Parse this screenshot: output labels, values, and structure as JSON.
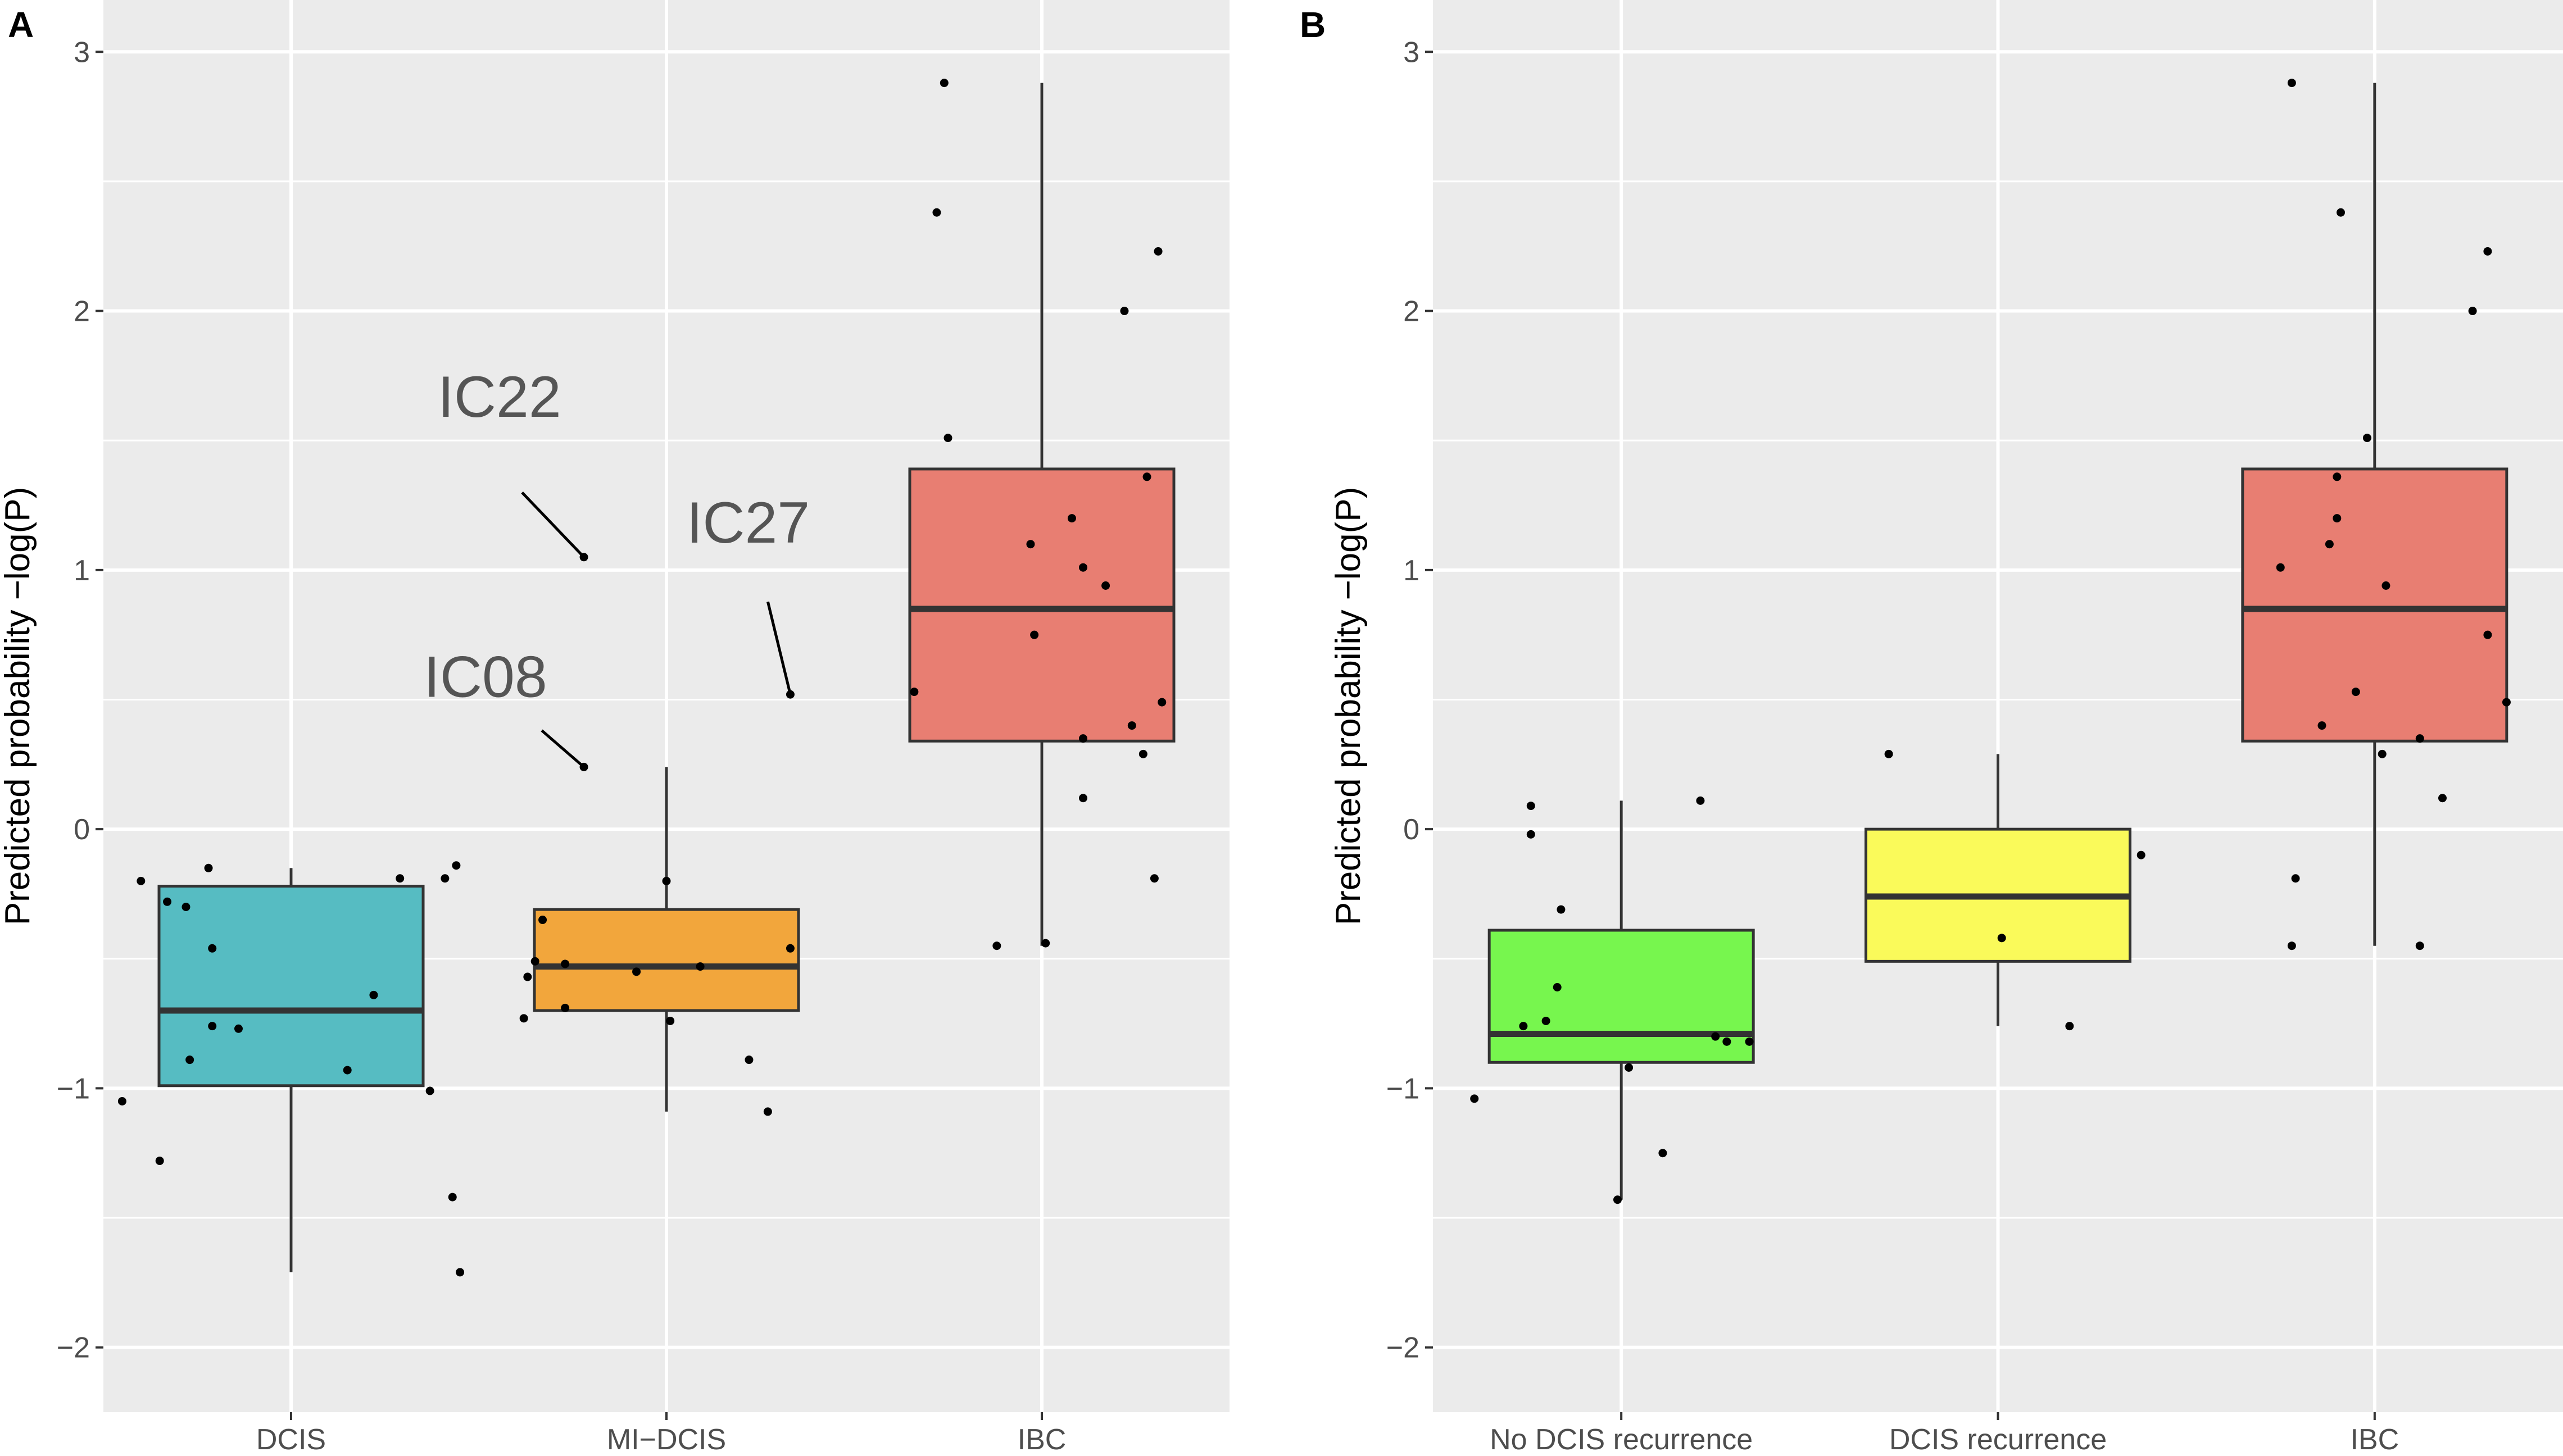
{
  "chart_data": [
    {
      "panel": "A",
      "type": "box",
      "ylabel": "Predicted probability −log(P)",
      "xlabel": "",
      "ylim": [
        -2.25,
        3.2
      ],
      "yticks": [
        {
          "value": -2,
          "label": "−2"
        },
        {
          "value": -1,
          "label": "−1"
        },
        {
          "value": 0,
          "label": "0"
        },
        {
          "value": 1,
          "label": "1"
        },
        {
          "value": 2,
          "label": "2"
        },
        {
          "value": 3,
          "label": "3"
        }
      ],
      "grid": true,
      "categories": [
        "DCIS",
        "MI−DCIS",
        "IBC"
      ],
      "boxes": [
        {
          "category": "DCIS",
          "color": "#56bcc2",
          "whisker_low": -1.71,
          "q1": -0.99,
          "median": -0.7,
          "q3": -0.22,
          "whisker_high": -0.15,
          "points": [
            [
              -0.45,
              -1.05
            ],
            [
              -0.4,
              -0.2
            ],
            [
              -0.35,
              -1.28
            ],
            [
              -0.33,
              -0.28
            ],
            [
              -0.28,
              -0.3
            ],
            [
              -0.27,
              -0.89
            ],
            [
              -0.22,
              -0.15
            ],
            [
              -0.21,
              -0.46
            ],
            [
              -0.21,
              -0.76
            ],
            [
              -0.14,
              -0.77
            ],
            [
              0.15,
              -0.93
            ],
            [
              0.22,
              -0.64
            ],
            [
              0.29,
              -0.19
            ],
            [
              0.37,
              -1.01
            ],
            [
              0.41,
              -0.19
            ],
            [
              0.43,
              -1.42
            ],
            [
              0.44,
              -0.14
            ],
            [
              0.45,
              -1.71
            ]
          ]
        },
        {
          "category": "MI−DCIS",
          "color": "#f2a63c",
          "whisker_low": -1.09,
          "q1": -0.7,
          "median": -0.53,
          "q3": -0.31,
          "whisker_high": 0.24,
          "points": [
            [
              -0.38,
              -0.73
            ],
            [
              -0.37,
              -0.57
            ],
            [
              -0.35,
              -0.51
            ],
            [
              -0.33,
              -0.35
            ],
            [
              -0.27,
              -0.52
            ],
            [
              -0.27,
              -0.69
            ],
            [
              -0.22,
              1.05
            ],
            [
              -0.22,
              0.24
            ],
            [
              -0.08,
              -0.55
            ],
            [
              0.0,
              -0.2
            ],
            [
              0.01,
              -0.74
            ],
            [
              0.09,
              -0.53
            ],
            [
              0.22,
              -0.89
            ],
            [
              0.27,
              -1.09
            ],
            [
              0.33,
              0.52
            ],
            [
              0.33,
              -0.46
            ]
          ]
        },
        {
          "category": "IBC",
          "color": "#e87e72",
          "whisker_low": -0.45,
          "q1": 0.34,
          "median": 0.85,
          "q3": 1.39,
          "whisker_high": 2.88,
          "points": [
            [
              -0.34,
              0.53
            ],
            [
              -0.26,
              2.88
            ],
            [
              -0.28,
              2.38
            ],
            [
              -0.25,
              1.51
            ],
            [
              -0.12,
              -0.45
            ],
            [
              -0.03,
              1.1
            ],
            [
              -0.02,
              0.75
            ],
            [
              0.01,
              -0.44
            ],
            [
              0.08,
              1.2
            ],
            [
              0.11,
              1.01
            ],
            [
              0.11,
              0.35
            ],
            [
              0.11,
              0.12
            ],
            [
              0.17,
              0.94
            ],
            [
              0.22,
              2.0
            ],
            [
              0.24,
              0.4
            ],
            [
              0.27,
              0.29
            ],
            [
              0.28,
              1.36
            ],
            [
              0.31,
              2.23
            ],
            [
              0.3,
              -0.19
            ],
            [
              0.32,
              0.49
            ]
          ]
        }
      ],
      "annotations": [
        {
          "text": "IC22",
          "category": "MI−DCIS",
          "x": -0.22,
          "y": 1.05
        },
        {
          "text": "IC08",
          "category": "MI−DCIS",
          "x": -0.22,
          "y": 0.24
        },
        {
          "text": "IC27",
          "category": "MI−DCIS",
          "x": 0.33,
          "y": 0.52
        }
      ]
    },
    {
      "panel": "B",
      "type": "box",
      "ylabel": "Predicted probability −log(P)",
      "xlabel": "",
      "ylim": [
        -2.25,
        3.2
      ],
      "yticks": [
        {
          "value": -2,
          "label": "−2"
        },
        {
          "value": -1,
          "label": "−1"
        },
        {
          "value": 0,
          "label": "0"
        },
        {
          "value": 1,
          "label": "1"
        },
        {
          "value": 2,
          "label": "2"
        },
        {
          "value": 3,
          "label": "3"
        }
      ],
      "grid": true,
      "categories": [
        "No DCIS recurrence",
        "DCIS recurrence",
        "IBC"
      ],
      "boxes": [
        {
          "category": "No DCIS recurrence",
          "color": "#77f64e",
          "whisker_low": -1.43,
          "q1": -0.9,
          "median": -0.79,
          "q3": -0.39,
          "whisker_high": 0.11,
          "points": [
            [
              -0.39,
              -1.04
            ],
            [
              -0.26,
              -0.76
            ],
            [
              -0.24,
              0.09
            ],
            [
              -0.24,
              -0.02
            ],
            [
              -0.2,
              -0.74
            ],
            [
              -0.17,
              -0.61
            ],
            [
              -0.16,
              -0.31
            ],
            [
              -0.01,
              -1.43
            ],
            [
              0.02,
              -0.92
            ],
            [
              0.11,
              -1.25
            ],
            [
              0.21,
              0.11
            ],
            [
              0.25,
              -0.8
            ],
            [
              0.28,
              -0.82
            ],
            [
              0.34,
              -0.82
            ]
          ]
        },
        {
          "category": "DCIS recurrence",
          "color": "#fafa5a",
          "whisker_low": -0.76,
          "q1": -0.51,
          "median": -0.26,
          "q3": 0.0,
          "whisker_high": 0.29,
          "points": [
            [
              -0.29,
              0.29
            ],
            [
              0.01,
              -0.42
            ],
            [
              0.19,
              -0.76
            ],
            [
              0.38,
              -0.1
            ]
          ]
        },
        {
          "category": "IBC",
          "color": "#e87e72",
          "whisker_low": -0.45,
          "q1": 0.34,
          "median": 0.85,
          "q3": 1.39,
          "whisker_high": 2.88,
          "points": [
            [
              -0.22,
              2.88
            ],
            [
              -0.25,
              1.01
            ],
            [
              -0.22,
              -0.45
            ],
            [
              -0.21,
              -0.19
            ],
            [
              -0.14,
              0.4
            ],
            [
              -0.12,
              1.1
            ],
            [
              -0.1,
              1.36
            ],
            [
              -0.1,
              1.2
            ],
            [
              -0.09,
              2.38
            ],
            [
              -0.05,
              0.53
            ],
            [
              -0.02,
              1.51
            ],
            [
              0.02,
              0.29
            ],
            [
              0.03,
              0.94
            ],
            [
              0.12,
              -0.45
            ],
            [
              0.12,
              0.35
            ],
            [
              0.18,
              0.12
            ],
            [
              0.26,
              2.0
            ],
            [
              0.3,
              2.23
            ],
            [
              0.3,
              0.75
            ],
            [
              0.35,
              0.49
            ]
          ]
        }
      ],
      "annotations": []
    }
  ]
}
